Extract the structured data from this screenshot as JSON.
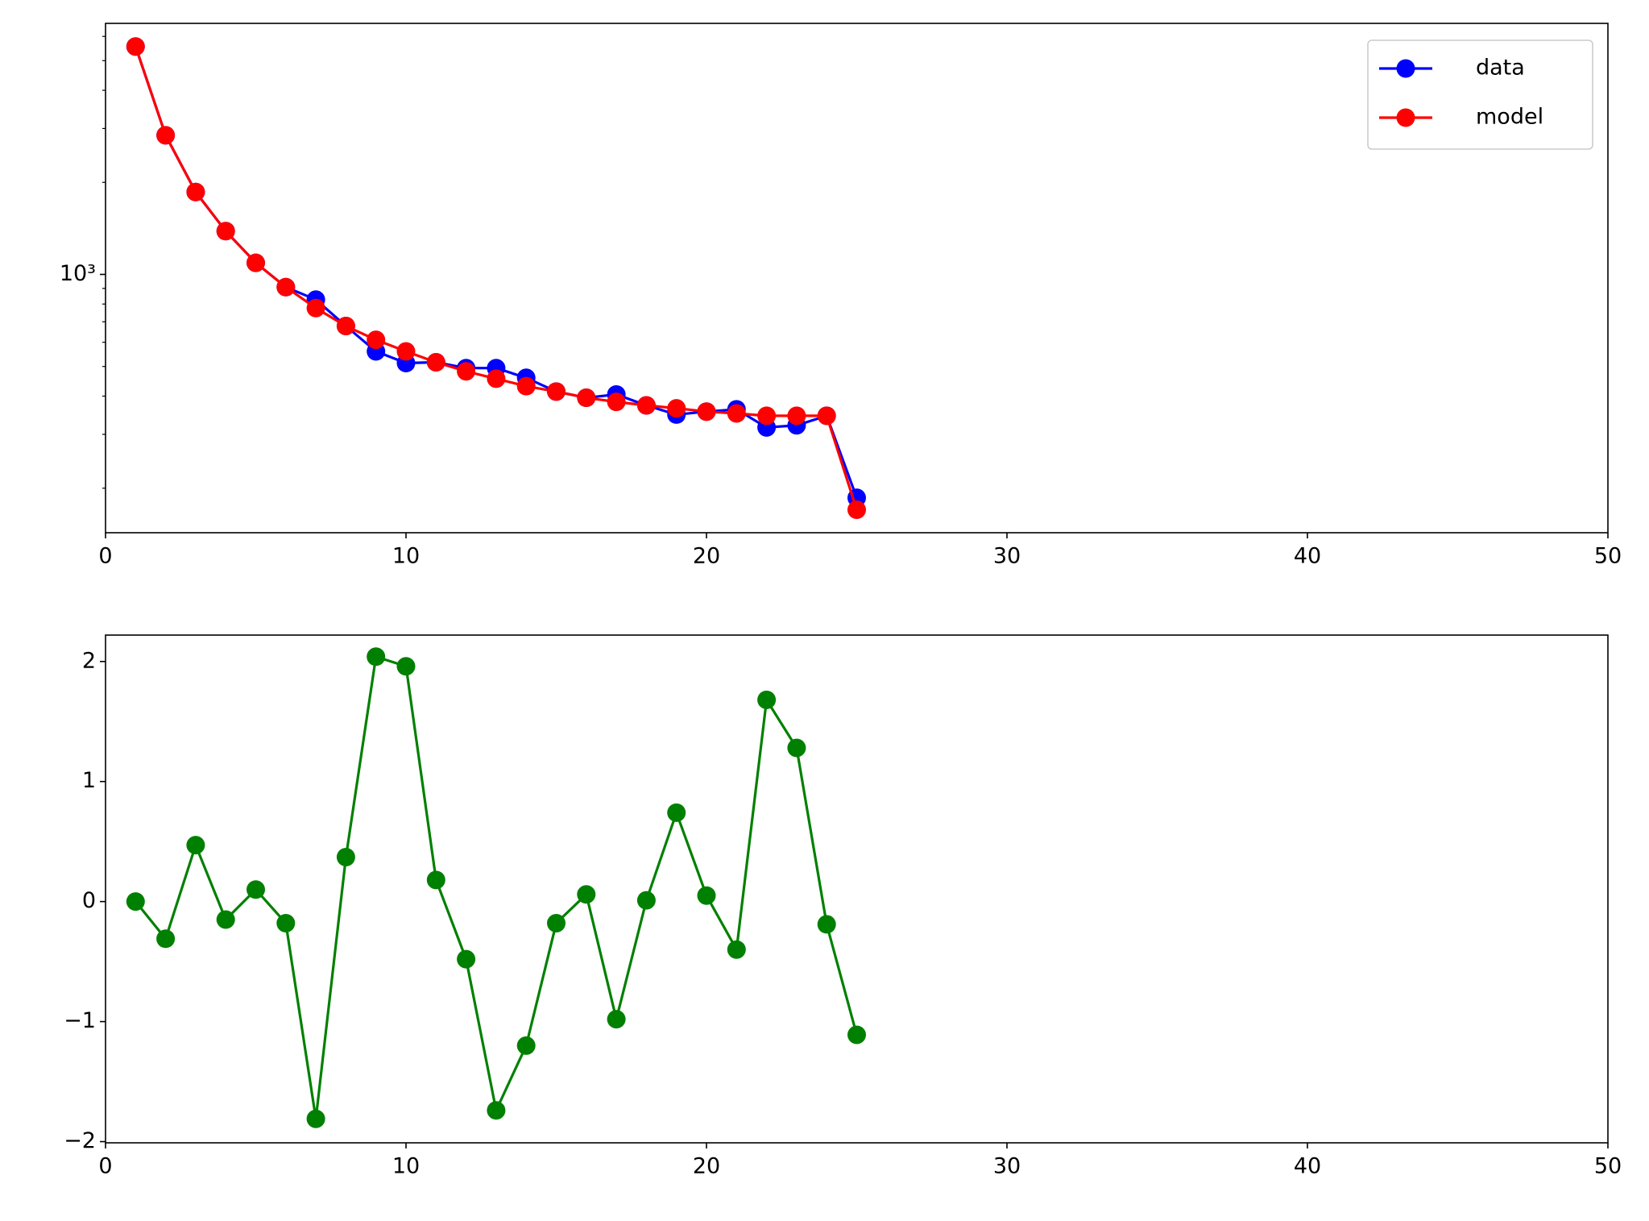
{
  "chart_data": [
    {
      "type": "line",
      "yscale": "log",
      "legend": "upper right",
      "x": [
        1,
        2,
        3,
        4,
        5,
        6,
        7,
        8,
        9,
        10,
        11,
        12,
        13,
        14,
        15,
        16,
        17,
        18,
        19,
        20,
        21,
        22,
        23,
        24,
        25
      ],
      "series": [
        {
          "name": "data",
          "color": "#0000ff",
          "values": [
            5560,
            2850,
            1860,
            1385,
            1091,
            909,
            827,
            678,
            560,
            513,
            516,
            494,
            494,
            459,
            414,
            395,
            405,
            373,
            348,
            356,
            362,
            316,
            321,
            345,
            186
          ]
        },
        {
          "name": "model",
          "color": "#ff0000",
          "values": [
            5560,
            2850,
            1860,
            1385,
            1091,
            909,
            776,
            678,
            611,
            560,
            516,
            482,
            456,
            431,
            414,
            395,
            383,
            373,
            365,
            356,
            351,
            345,
            345,
            345,
            170
          ]
        }
      ],
      "xlim": [
        0,
        50
      ],
      "xticks": [
        0,
        10,
        20,
        30,
        40,
        50
      ],
      "ylim": [
        143,
        6620
      ],
      "yticks": [
        {
          "value": 1000,
          "label": "10³"
        }
      ]
    },
    {
      "type": "line",
      "x": [
        1,
        2,
        3,
        4,
        5,
        6,
        7,
        8,
        9,
        10,
        11,
        12,
        13,
        14,
        15,
        16,
        17,
        18,
        19,
        20,
        21,
        22,
        23,
        24,
        25
      ],
      "values": [
        0,
        -0.31,
        0.47,
        -0.15,
        0.1,
        -0.18,
        -1.81,
        0.37,
        2.04,
        1.96,
        0.18,
        -0.48,
        -1.74,
        -1.2,
        -0.18,
        0.06,
        -0.98,
        0.01,
        0.74,
        0.05,
        -0.4,
        1.68,
        1.28,
        -0.19,
        -1.11
      ],
      "color": "#008000",
      "xlim": [
        0,
        50
      ],
      "xticks": [
        0,
        10,
        20,
        30,
        40,
        50
      ],
      "ylim": [
        -2.01,
        2.22
      ],
      "yticks": [
        {
          "value": -2,
          "label": "−2"
        },
        {
          "value": -1,
          "label": "−1"
        },
        0,
        1,
        2
      ]
    }
  ]
}
